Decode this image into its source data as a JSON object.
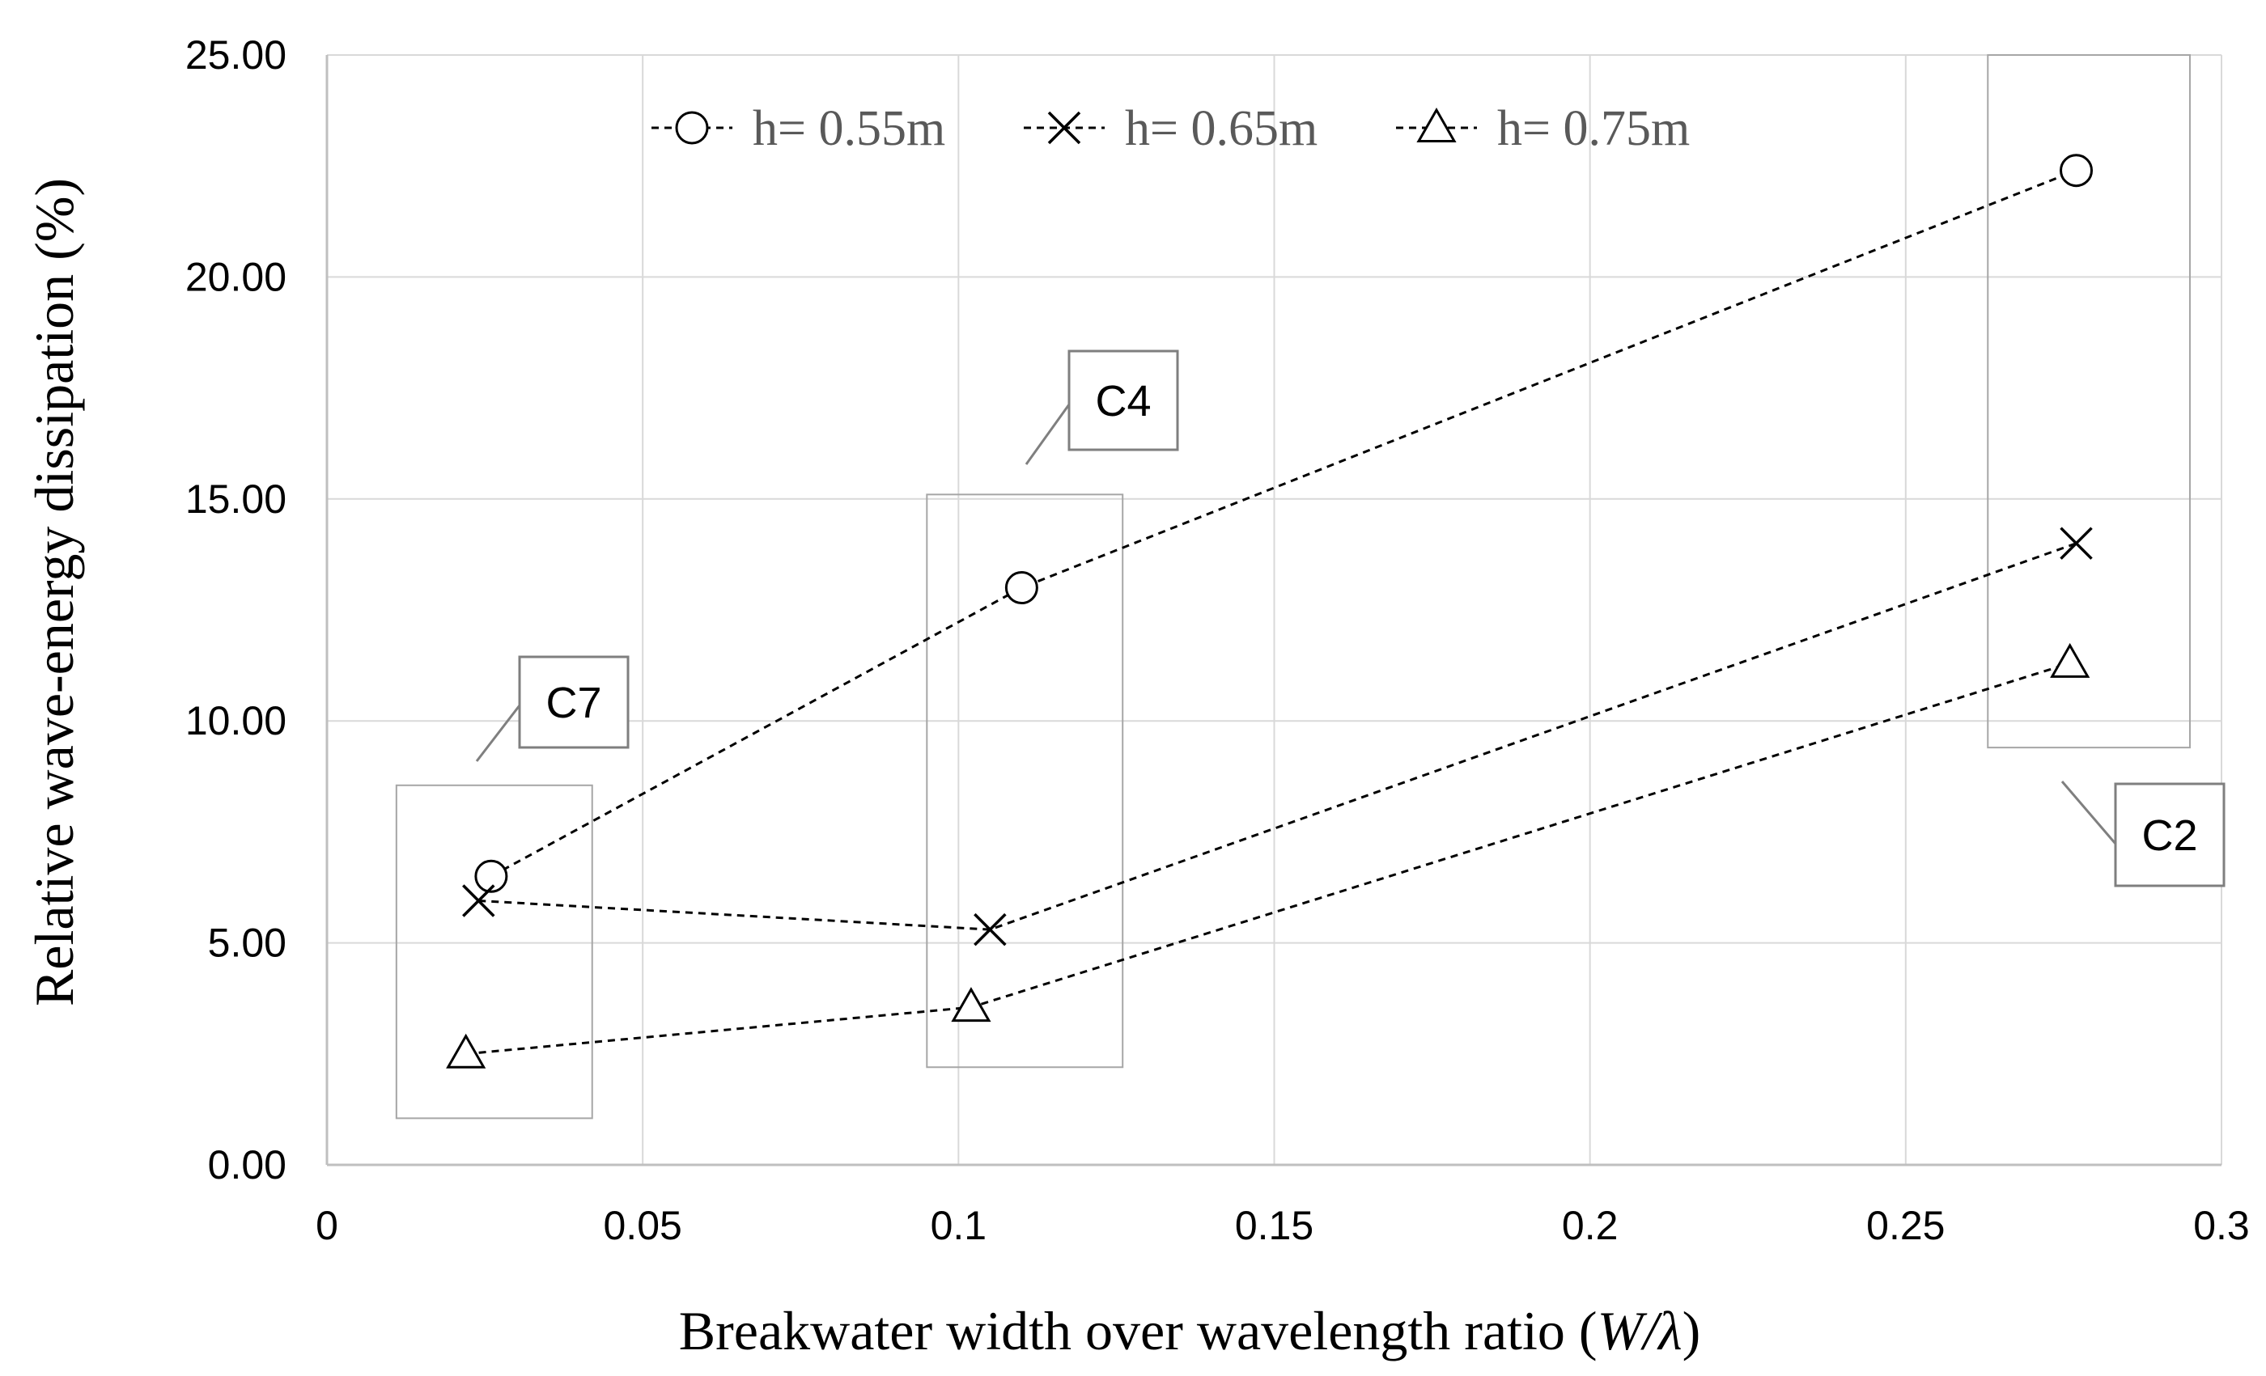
{
  "chart_data": {
    "type": "line",
    "xlabel": "Breakwater width over wavelength ratio (W/λ)",
    "xlabel_prefix": "Breakwater width over wavelength ratio (",
    "xlabel_var": "W/λ",
    "xlabel_suffix": ")",
    "ylabel": "Relative wave-energy dissipation (%)",
    "xlim": [
      0,
      0.3
    ],
    "ylim": [
      0,
      25
    ],
    "x_ticks": [
      "0",
      "0.05",
      "0.1",
      "0.15",
      "0.2",
      "0.25",
      "0.3"
    ],
    "x_tick_values": [
      0,
      0.05,
      0.1,
      0.15,
      0.2,
      0.25,
      0.3
    ],
    "y_ticks": [
      "0.00",
      "5.00",
      "10.00",
      "15.00",
      "20.00",
      "25.00"
    ],
    "y_tick_values": [
      0,
      5,
      10,
      15,
      20,
      25
    ],
    "grid": true,
    "legend_position": "top",
    "series": [
      {
        "name": "h= 0.55m",
        "marker": "circle",
        "x": [
          0.026,
          0.11,
          0.277
        ],
        "y": [
          6.5,
          13.0,
          22.4
        ]
      },
      {
        "name": "h= 0.65m",
        "marker": "cross",
        "x": [
          0.024,
          0.105,
          0.277
        ],
        "y": [
          5.95,
          5.3,
          14.0
        ]
      },
      {
        "name": "h= 0.75m",
        "marker": "triangle",
        "x": [
          0.022,
          0.102,
          0.276
        ],
        "y": [
          2.5,
          3.55,
          11.3
        ]
      }
    ],
    "annotations": [
      {
        "label": "C7",
        "x_range": [
          0.011,
          0.042
        ],
        "y_range": [
          1.05,
          8.55
        ]
      },
      {
        "label": "C4",
        "x_range": [
          0.095,
          0.126
        ],
        "y_range": [
          2.2,
          15.1
        ]
      },
      {
        "label": "C2",
        "x_range": [
          0.263,
          0.295
        ],
        "y_range": [
          9.4,
          25.0
        ]
      }
    ]
  },
  "colors": {
    "grid": "#d9d9d9",
    "axis": "#bfbfbf",
    "line": "#000000",
    "legend_text": "#595959",
    "callout_box": "#7f7f7f",
    "region_box": "#a6a6a6"
  }
}
